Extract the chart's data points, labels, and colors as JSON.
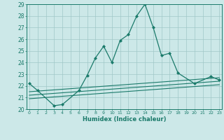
{
  "xlabel": "Humidex (Indice chaleur)",
  "x": [
    0,
    1,
    2,
    3,
    4,
    5,
    6,
    7,
    8,
    9,
    10,
    11,
    12,
    13,
    14,
    15,
    16,
    17,
    18,
    19,
    20,
    21,
    22,
    23
  ],
  "line1_x": [
    0,
    1,
    3,
    4,
    6,
    7,
    8,
    9,
    10,
    11,
    12,
    13,
    14,
    15,
    16,
    17,
    18,
    20,
    22,
    23
  ],
  "line1_y": [
    22.2,
    21.6,
    20.3,
    20.4,
    21.6,
    22.9,
    24.4,
    25.4,
    24.0,
    25.9,
    26.4,
    28.0,
    29.0,
    27.0,
    24.6,
    24.8,
    23.1,
    22.2,
    22.8,
    22.5
  ],
  "line2_x": [
    0,
    23
  ],
  "line2_y": [
    21.5,
    22.7
  ],
  "line3_x": [
    0,
    23
  ],
  "line3_y": [
    21.2,
    22.4
  ],
  "line4_x": [
    0,
    23
  ],
  "line4_y": [
    20.9,
    22.1
  ],
  "ylim": [
    20,
    29
  ],
  "xlim": [
    -0.3,
    23.3
  ],
  "color": "#1a7a6a",
  "bg_color": "#cce8e8",
  "grid_color": "#a0c8c8"
}
